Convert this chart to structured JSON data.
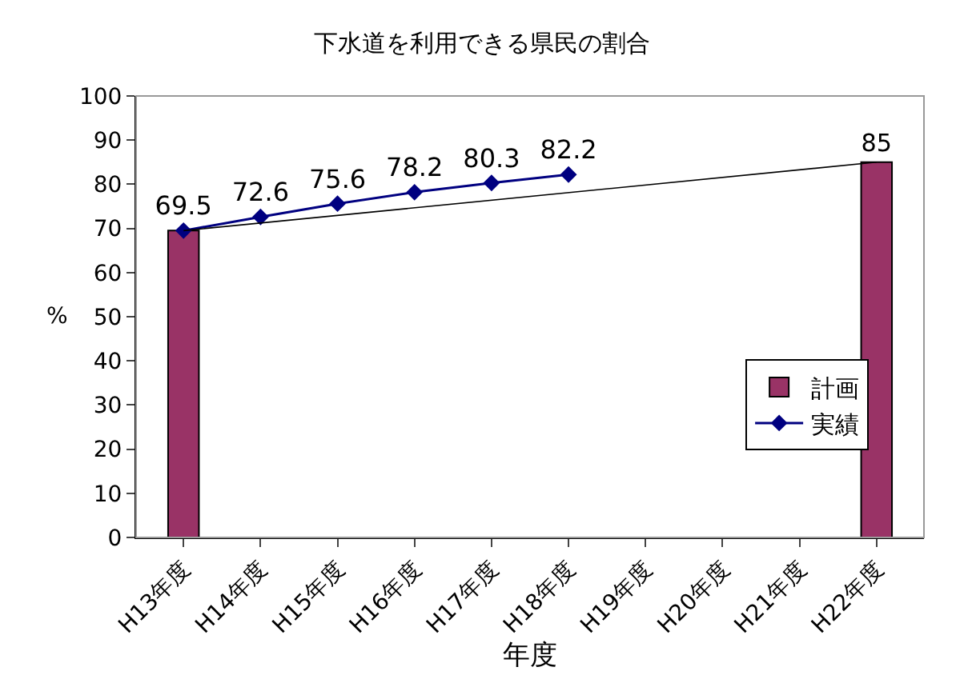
{
  "chart_data": {
    "type": "bar",
    "title": "下水道を利用できる県民の割合",
    "xlabel": "年度",
    "ylabel": "%",
    "categories": [
      "H13年度",
      "H14年度",
      "H15年度",
      "H16年度",
      "H17年度",
      "H18年度",
      "H19年度",
      "H20年度",
      "H21年度",
      "H22年度"
    ],
    "series": [
      {
        "name": "計画",
        "color": "#993366",
        "values": [
          69.5,
          null,
          null,
          null,
          null,
          null,
          null,
          null,
          null,
          85
        ],
        "value_labels": [
          null,
          null,
          null,
          null,
          null,
          null,
          null,
          null,
          null,
          "85"
        ]
      },
      {
        "name": "実績",
        "type": "line",
        "color": "#000080",
        "marker": "diamond",
        "values": [
          69.5,
          72.6,
          75.6,
          78.2,
          80.3,
          82.2,
          null,
          null,
          null,
          null
        ],
        "value_labels": [
          "69.5",
          "72.6",
          "75.6",
          "78.2",
          "80.3",
          "82.2",
          null,
          null,
          null,
          null
        ]
      },
      {
        "type": "line",
        "color": "#000000",
        "marker": "none",
        "x": [
          "H13年度",
          "H22年度"
        ],
        "values": [
          69.5,
          85
        ]
      }
    ],
    "ylim": [
      0,
      100
    ],
    "yticks": [
      0,
      10,
      20,
      30,
      40,
      50,
      60,
      70,
      80,
      90,
      100
    ],
    "legend": "right"
  }
}
